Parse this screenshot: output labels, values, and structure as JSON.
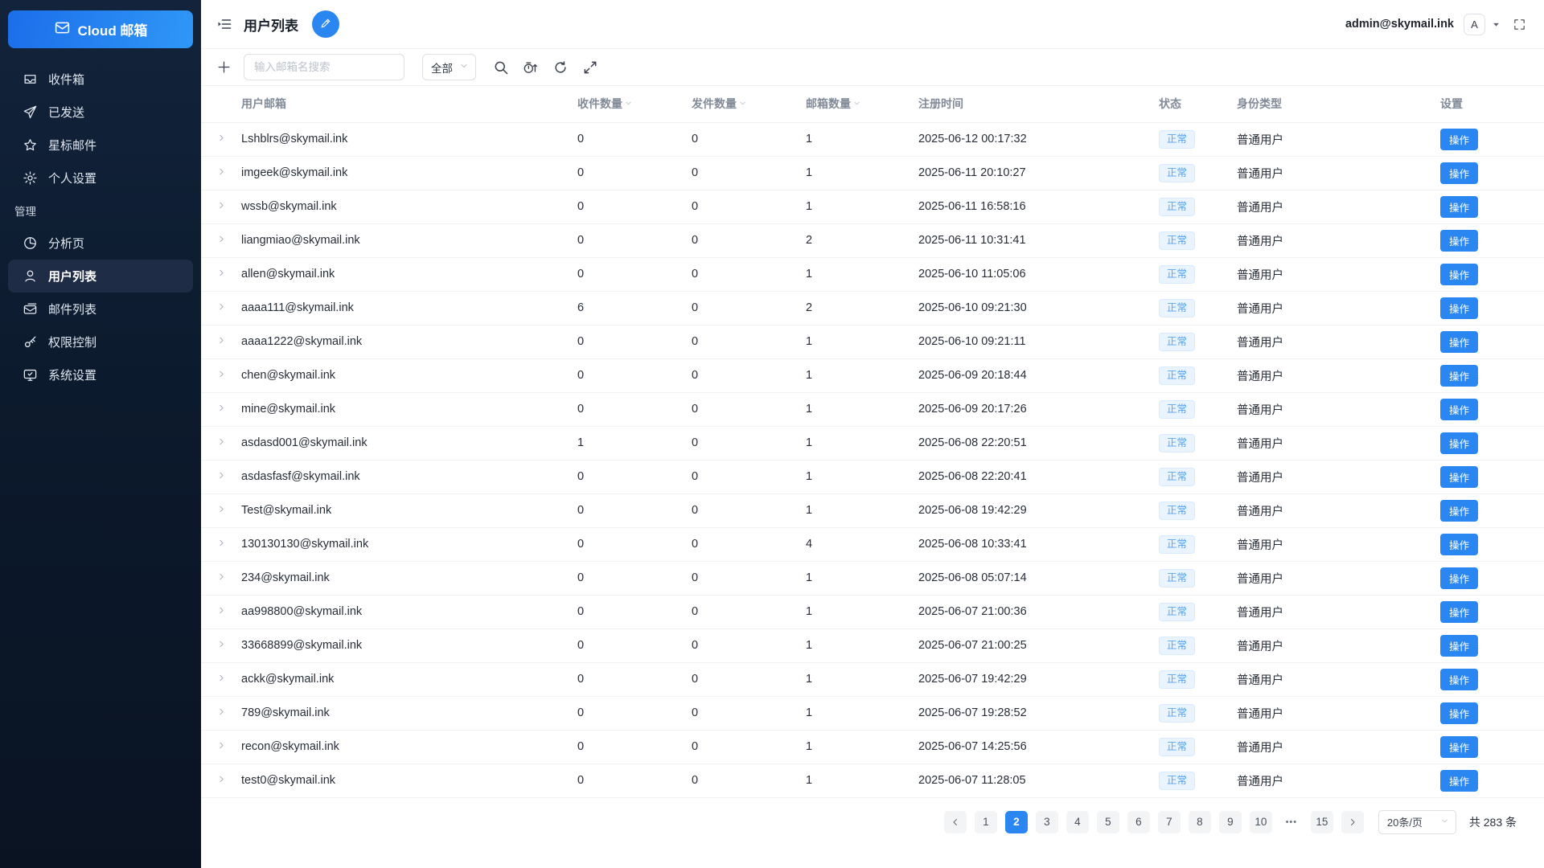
{
  "app": {
    "logo_text": "Cloud 邮箱",
    "account_email": "admin@skymail.ink",
    "avatar_letter": "A"
  },
  "colors": {
    "primary": "#2a87f2",
    "sidebar_bg": "#0d1b2e",
    "badge_bg": "#e9f4ff",
    "badge_text": "#55a3f6"
  },
  "sidebar": {
    "items": [
      {
        "label": "收件箱",
        "icon": "inbox-icon"
      },
      {
        "label": "已发送",
        "icon": "send-icon"
      },
      {
        "label": "星标邮件",
        "icon": "star-icon"
      },
      {
        "label": "个人设置",
        "icon": "gear-icon"
      }
    ],
    "section_label": "管理",
    "admin_items": [
      {
        "label": "分析页",
        "icon": "pie-chart-icon"
      },
      {
        "label": "用户列表",
        "icon": "user-icon",
        "active": true
      },
      {
        "label": "邮件列表",
        "icon": "mail-list-icon"
      },
      {
        "label": "权限控制",
        "icon": "key-icon"
      },
      {
        "label": "系统设置",
        "icon": "monitor-icon"
      }
    ]
  },
  "page": {
    "title": "用户列表"
  },
  "toolbar": {
    "search_placeholder": "输入邮箱名搜索",
    "filter_selected": "全部"
  },
  "table": {
    "columns": [
      "用户邮箱",
      "收件数量",
      "发件数量",
      "邮箱数量",
      "注册时间",
      "状态",
      "身份类型",
      "设置"
    ],
    "sortable_columns": [
      "收件数量",
      "发件数量",
      "邮箱数量"
    ],
    "rows": [
      {
        "email": "Lshblrs@skymail.ink",
        "received": "0",
        "sent": "0",
        "mailboxes": "1",
        "registered": "2025-06-12 00:17:32",
        "status": "正常",
        "role": "普通用户",
        "action": "操作"
      },
      {
        "email": "imgeek@skymail.ink",
        "received": "0",
        "sent": "0",
        "mailboxes": "1",
        "registered": "2025-06-11 20:10:27",
        "status": "正常",
        "role": "普通用户",
        "action": "操作"
      },
      {
        "email": "wssb@skymail.ink",
        "received": "0",
        "sent": "0",
        "mailboxes": "1",
        "registered": "2025-06-11 16:58:16",
        "status": "正常",
        "role": "普通用户",
        "action": "操作"
      },
      {
        "email": "liangmiao@skymail.ink",
        "received": "0",
        "sent": "0",
        "mailboxes": "2",
        "registered": "2025-06-11 10:31:41",
        "status": "正常",
        "role": "普通用户",
        "action": "操作"
      },
      {
        "email": "allen@skymail.ink",
        "received": "0",
        "sent": "0",
        "mailboxes": "1",
        "registered": "2025-06-10 11:05:06",
        "status": "正常",
        "role": "普通用户",
        "action": "操作"
      },
      {
        "email": "aaaa111@skymail.ink",
        "received": "6",
        "sent": "0",
        "mailboxes": "2",
        "registered": "2025-06-10 09:21:30",
        "status": "正常",
        "role": "普通用户",
        "action": "操作"
      },
      {
        "email": "aaaa1222@skymail.ink",
        "received": "0",
        "sent": "0",
        "mailboxes": "1",
        "registered": "2025-06-10 09:21:11",
        "status": "正常",
        "role": "普通用户",
        "action": "操作"
      },
      {
        "email": "chen@skymail.ink",
        "received": "0",
        "sent": "0",
        "mailboxes": "1",
        "registered": "2025-06-09 20:18:44",
        "status": "正常",
        "role": "普通用户",
        "action": "操作"
      },
      {
        "email": "mine@skymail.ink",
        "received": "0",
        "sent": "0",
        "mailboxes": "1",
        "registered": "2025-06-09 20:17:26",
        "status": "正常",
        "role": "普通用户",
        "action": "操作"
      },
      {
        "email": "asdasd001@skymail.ink",
        "received": "1",
        "sent": "0",
        "mailboxes": "1",
        "registered": "2025-06-08 22:20:51",
        "status": "正常",
        "role": "普通用户",
        "action": "操作"
      },
      {
        "email": "asdasfasf@skymail.ink",
        "received": "0",
        "sent": "0",
        "mailboxes": "1",
        "registered": "2025-06-08 22:20:41",
        "status": "正常",
        "role": "普通用户",
        "action": "操作"
      },
      {
        "email": "Test@skymail.ink",
        "received": "0",
        "sent": "0",
        "mailboxes": "1",
        "registered": "2025-06-08 19:42:29",
        "status": "正常",
        "role": "普通用户",
        "action": "操作"
      },
      {
        "email": "130130130@skymail.ink",
        "received": "0",
        "sent": "0",
        "mailboxes": "4",
        "registered": "2025-06-08 10:33:41",
        "status": "正常",
        "role": "普通用户",
        "action": "操作"
      },
      {
        "email": "234@skymail.ink",
        "received": "0",
        "sent": "0",
        "mailboxes": "1",
        "registered": "2025-06-08 05:07:14",
        "status": "正常",
        "role": "普通用户",
        "action": "操作"
      },
      {
        "email": "aa998800@skymail.ink",
        "received": "0",
        "sent": "0",
        "mailboxes": "1",
        "registered": "2025-06-07 21:00:36",
        "status": "正常",
        "role": "普通用户",
        "action": "操作"
      },
      {
        "email": "33668899@skymail.ink",
        "received": "0",
        "sent": "0",
        "mailboxes": "1",
        "registered": "2025-06-07 21:00:25",
        "status": "正常",
        "role": "普通用户",
        "action": "操作"
      },
      {
        "email": "ackk@skymail.ink",
        "received": "0",
        "sent": "0",
        "mailboxes": "1",
        "registered": "2025-06-07 19:42:29",
        "status": "正常",
        "role": "普通用户",
        "action": "操作"
      },
      {
        "email": "789@skymail.ink",
        "received": "0",
        "sent": "0",
        "mailboxes": "1",
        "registered": "2025-06-07 19:28:52",
        "status": "正常",
        "role": "普通用户",
        "action": "操作"
      },
      {
        "email": "recon@skymail.ink",
        "received": "0",
        "sent": "0",
        "mailboxes": "1",
        "registered": "2025-06-07 14:25:56",
        "status": "正常",
        "role": "普通用户",
        "action": "操作"
      },
      {
        "email": "test0@skymail.ink",
        "received": "0",
        "sent": "0",
        "mailboxes": "1",
        "registered": "2025-06-07 11:28:05",
        "status": "正常",
        "role": "普通用户",
        "action": "操作"
      }
    ]
  },
  "pagination": {
    "pages": [
      "1",
      "2",
      "3",
      "4",
      "5",
      "6",
      "7",
      "8",
      "9",
      "10"
    ],
    "active_page": "2",
    "ellipsis": "•••",
    "last_page": "15",
    "page_size": "20条/页",
    "total": "共 283 条"
  }
}
